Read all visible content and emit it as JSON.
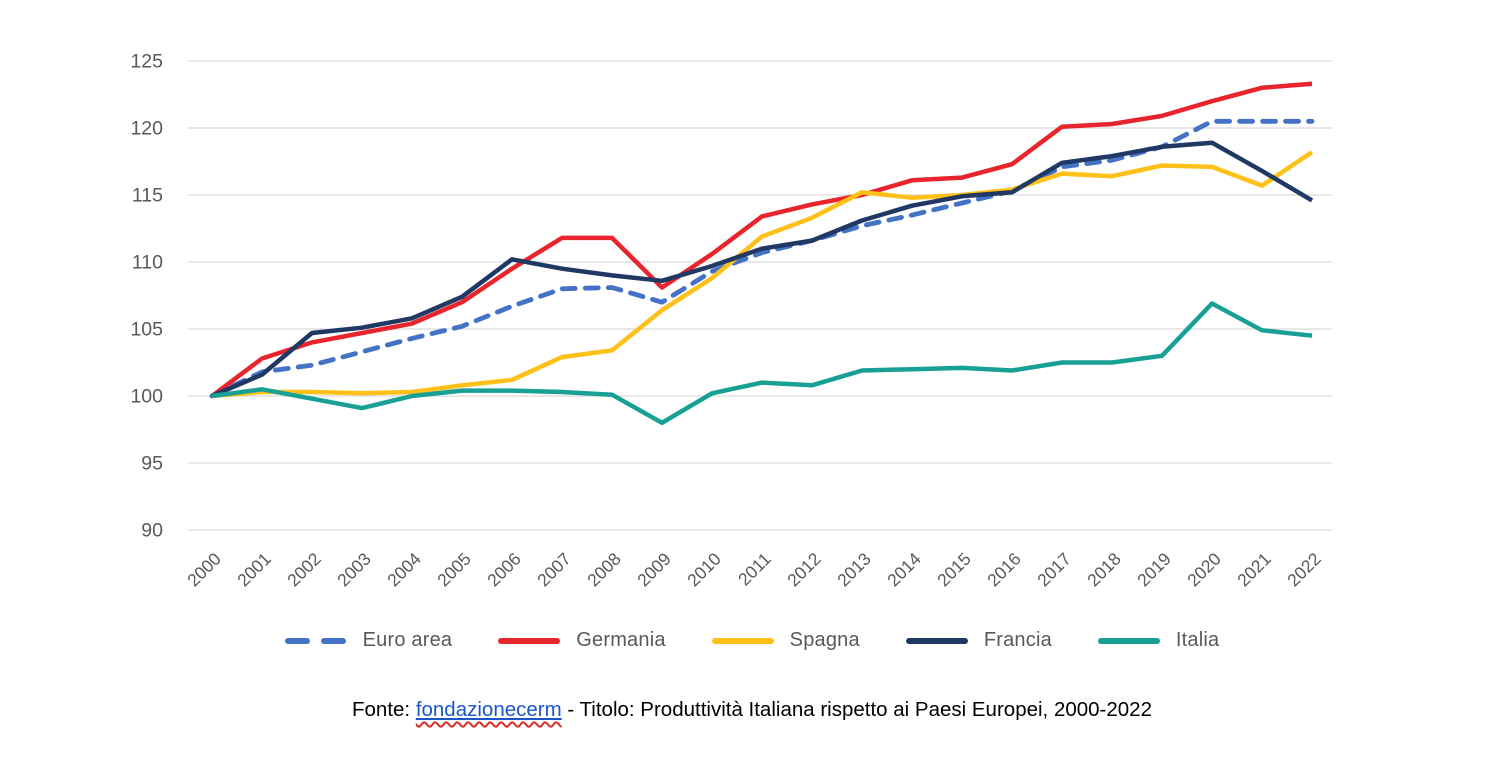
{
  "page": {
    "background": "#ffffff"
  },
  "chart_data": {
    "type": "line",
    "title": "Produttività Italiana rispetto ai Paesi Europei, 2000-2022",
    "xlabel": "",
    "ylabel": "",
    "x": [
      "2000",
      "2001",
      "2002",
      "2003",
      "2004",
      "2005",
      "2006",
      "2007",
      "2008",
      "2009",
      "2010",
      "2011",
      "2012",
      "2013",
      "2014",
      "2015",
      "2016",
      "2017",
      "2018",
      "2019",
      "2020",
      "2021",
      "2022"
    ],
    "y_ticks": [
      90,
      95,
      100,
      105,
      110,
      115,
      120,
      125
    ],
    "ylim": [
      90,
      125
    ],
    "grid": true,
    "grid_color": "#d9d9d9",
    "tick_color": "#595959",
    "legend_position": "bottom",
    "series": [
      {
        "name": "Euro area",
        "color": "#4472c4",
        "dashed": true,
        "values": [
          100,
          101.8,
          102.3,
          103.3,
          104.3,
          105.2,
          106.7,
          108.0,
          108.1,
          107.0,
          109.3,
          110.7,
          111.6,
          112.7,
          113.5,
          114.4,
          115.3,
          117.1,
          117.6,
          118.6,
          120.5,
          120.5,
          120.5
        ]
      },
      {
        "name": "Germania",
        "color": "#e8252c",
        "dashed": false,
        "values": [
          100,
          102.8,
          104.0,
          104.7,
          105.4,
          107.0,
          109.5,
          111.8,
          111.8,
          108.1,
          110.6,
          113.4,
          114.3,
          115.0,
          116.1,
          116.3,
          117.3,
          120.1,
          120.3,
          120.9,
          122.0,
          123.0,
          123.3
        ]
      },
      {
        "name": "Spagna",
        "color": "#ffc017",
        "dashed": false,
        "values": [
          100,
          100.3,
          100.3,
          100.2,
          100.3,
          100.8,
          101.2,
          102.9,
          103.4,
          106.4,
          108.8,
          111.9,
          113.3,
          115.2,
          114.8,
          115.0,
          115.4,
          116.6,
          116.4,
          117.2,
          117.1,
          115.7,
          118.2
        ]
      },
      {
        "name": "Francia",
        "color": "#1f3864",
        "dashed": false,
        "values": [
          100,
          101.6,
          104.7,
          105.1,
          105.8,
          107.4,
          110.2,
          109.5,
          109.0,
          108.6,
          109.7,
          111.0,
          111.6,
          113.1,
          114.2,
          114.9,
          115.2,
          117.4,
          117.9,
          118.6,
          118.9,
          116.8,
          114.6
        ]
      },
      {
        "name": "Italia",
        "color": "#18a094",
        "dashed": false,
        "values": [
          100,
          100.5,
          99.8,
          99.1,
          100.0,
          100.4,
          100.4,
          100.3,
          100.1,
          98.0,
          100.2,
          101.0,
          100.8,
          101.9,
          102.0,
          102.1,
          101.9,
          102.5,
          102.5,
          103.0,
          106.9,
          104.9,
          104.5
        ]
      }
    ]
  },
  "caption": {
    "prefix": "Fonte: ",
    "link": "fondazionecerm",
    "suffix": " - Titolo: Produttività Italiana rispetto ai Paesi Europei, 2000-2022",
    "link_color": "#1b56c8"
  }
}
